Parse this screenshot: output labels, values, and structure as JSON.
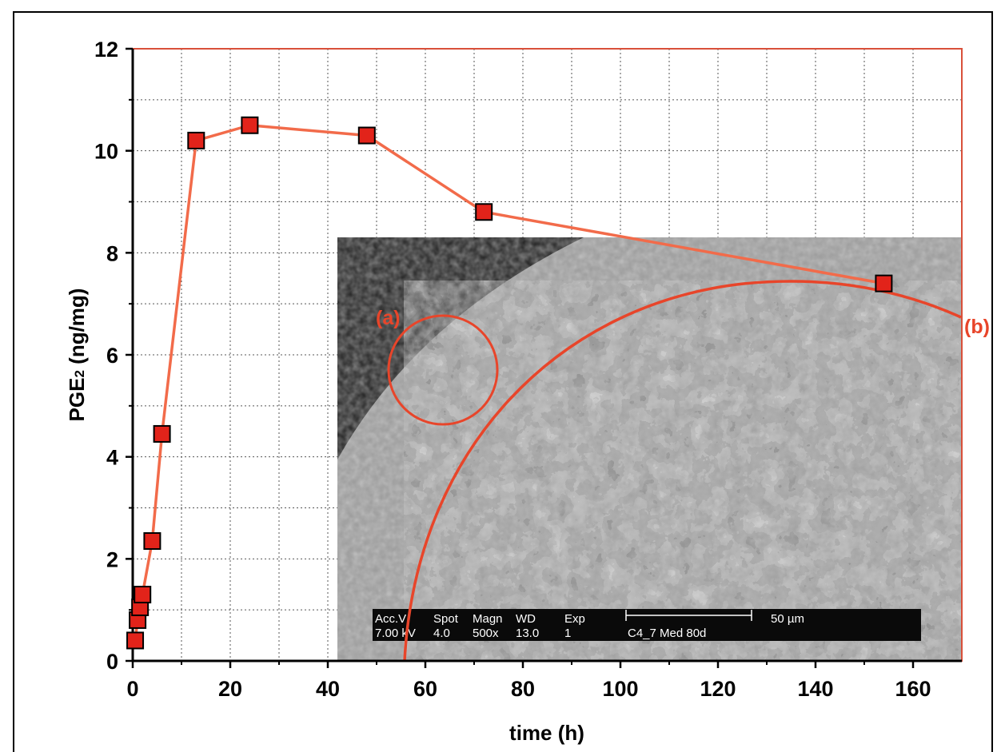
{
  "chart_data": {
    "type": "line",
    "xlabel": "time (h)",
    "ylabel_main": "PGE",
    "ylabel_sub": "2",
    "ylabel_unit": " (ng/mg)",
    "xlim": [
      0,
      170
    ],
    "ylim": [
      0,
      12
    ],
    "x_ticks": [
      0,
      20,
      40,
      60,
      80,
      100,
      120,
      140,
      160
    ],
    "y_ticks": [
      0,
      2,
      4,
      6,
      8,
      10,
      12
    ],
    "grid": true,
    "series": [
      {
        "x": [
          0.5,
          1,
          1.5,
          2,
          4,
          6,
          13,
          24,
          48,
          72,
          154
        ],
        "y": [
          0.4,
          0.8,
          1.05,
          1.3,
          2.35,
          4.45,
          10.2,
          10.5,
          10.3,
          8.8,
          7.4
        ]
      }
    ],
    "annotations": [
      {
        "id": "a",
        "text": "(a)"
      },
      {
        "id": "b",
        "text": "(b)"
      }
    ],
    "inset": {
      "type": "SEM micrograph",
      "header": [
        "Acc.V",
        "Spot",
        "Magn",
        "WD",
        "Exp"
      ],
      "values": [
        "7.00 kV",
        "4.0",
        "500x",
        "13.0",
        "1"
      ],
      "sample": "C4_7 Med 80d",
      "scale_bar": "50 µm"
    }
  },
  "colors": {
    "line": "#f26b4a",
    "marker_fill": "#e2231a",
    "marker_stroke": "#000000",
    "annotation": "#e8452a",
    "plot_border": "#d9503a"
  }
}
